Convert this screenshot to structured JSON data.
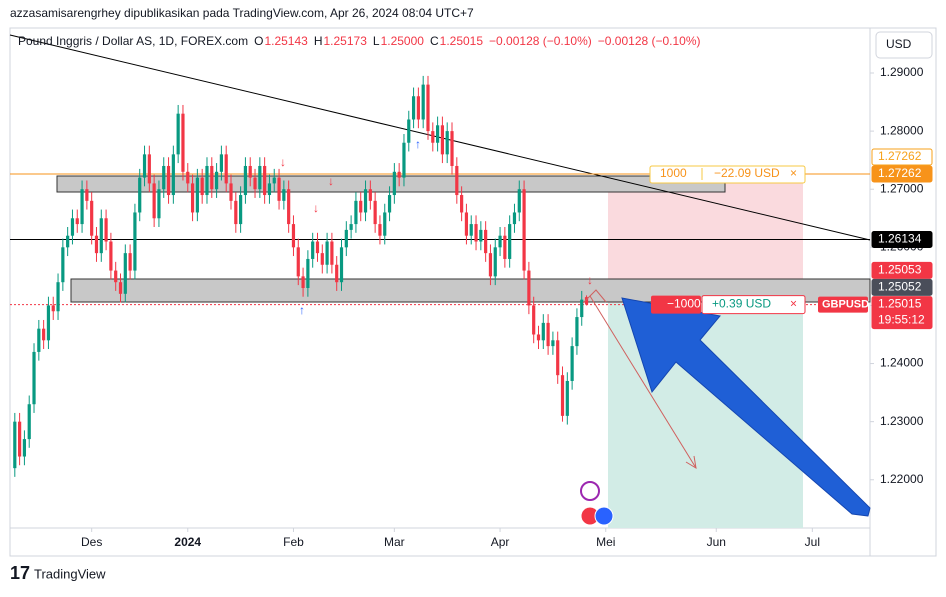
{
  "publisher": "azzasamisarengrhey dipublikasikan pada TradingView.com, Apr 26, 2024 08:04 UTC+7",
  "brand": "TradingView",
  "chart_data": {
    "type": "candlestick",
    "header": {
      "symbol": "Pound Inggris / Dollar AS, 1D, FOREX.com",
      "ohlc": [
        {
          "label": "O",
          "value": "1.25143"
        },
        {
          "label": "H",
          "value": "1.25173"
        },
        {
          "label": "L",
          "value": "1.25000"
        },
        {
          "label": "C",
          "value": "1.25015"
        }
      ],
      "change": "−0.00128 (−0.10%)",
      "change_repeat": "−0.00128 (−0.10%)"
    },
    "currency": "USD",
    "symbol_tag": "GBPUSD",
    "countdown": "19:55:12",
    "up_color": "#089981",
    "down_color": "#f23645",
    "open": [
      1.222,
      1.23,
      1.224,
      1.227,
      1.233,
      1.242,
      1.246,
      1.244,
      1.25,
      1.249,
      1.254,
      1.26,
      1.262,
      1.265,
      1.264,
      1.27,
      1.268,
      1.262,
      1.259,
      1.265,
      1.261,
      1.256,
      1.254,
      1.252,
      1.259,
      1.256,
      1.266,
      1.272,
      1.276,
      1.271,
      1.265,
      1.27,
      1.274,
      1.269,
      1.276,
      1.283,
      1.273,
      1.271,
      1.266,
      1.272,
      1.269,
      1.274,
      1.27,
      1.273,
      1.276,
      1.271,
      1.268,
      1.264,
      1.269,
      1.274,
      1.272,
      1.27,
      1.274,
      1.269,
      1.271,
      1.272,
      1.268,
      1.27,
      1.264,
      1.26,
      1.255,
      1.253,
      1.258,
      1.261,
      1.259,
      1.257,
      1.261,
      1.257,
      1.254,
      1.26,
      1.263,
      1.264,
      1.268,
      1.266,
      1.27,
      1.268,
      1.264,
      1.262,
      1.266,
      1.269,
      1.273,
      1.272,
      1.278,
      1.282,
      1.286,
      1.282,
      1.288,
      1.28,
      1.278,
      1.281,
      1.276,
      1.28,
      1.274,
      1.269,
      1.266,
      1.262,
      1.264,
      1.261,
      1.263,
      1.259,
      1.255,
      1.26,
      1.262,
      1.258,
      1.264,
      1.266,
      1.27,
      1.256,
      1.25,
      1.245,
      1.244,
      1.247,
      1.243,
      1.244,
      1.238,
      1.231,
      1.237,
      1.243,
      1.248,
      1.25143
    ],
    "high": [
      1.2315,
      1.2315,
      1.2285,
      1.2345,
      1.2435,
      1.2475,
      1.2475,
      1.2515,
      1.2515,
      1.2555,
      1.2615,
      1.2635,
      1.2665,
      1.2665,
      1.2715,
      1.2715,
      1.2695,
      1.2635,
      1.2665,
      1.2665,
      1.2625,
      1.2575,
      1.2555,
      1.2605,
      1.2605,
      1.2675,
      1.2735,
      1.2775,
      1.2775,
      1.2725,
      1.2715,
      1.2755,
      1.2755,
      1.2775,
      1.2845,
      1.2845,
      1.2745,
      1.2725,
      1.2735,
      1.2735,
      1.2755,
      1.2755,
      1.2745,
      1.2775,
      1.2775,
      1.2725,
      1.2695,
      1.2705,
      1.2755,
      1.2755,
      1.2735,
      1.2755,
      1.2755,
      1.2725,
      1.2735,
      1.2735,
      1.2715,
      1.2715,
      1.2655,
      1.2615,
      1.2565,
      1.2595,
      1.2625,
      1.2625,
      1.2605,
      1.2625,
      1.2625,
      1.2585,
      1.2615,
      1.2645,
      1.2655,
      1.2695,
      1.2695,
      1.2715,
      1.2715,
      1.2695,
      1.2655,
      1.2675,
      1.2705,
      1.2745,
      1.2745,
      1.2795,
      1.2835,
      1.2875,
      1.2875,
      1.2895,
      1.2895,
      1.2815,
      1.2825,
      1.2825,
      1.2815,
      1.2815,
      1.2755,
      1.2705,
      1.2675,
      1.2655,
      1.2655,
      1.2645,
      1.2645,
      1.2605,
      1.2615,
      1.2635,
      1.2635,
      1.2655,
      1.2675,
      1.2715,
      1.2715,
      1.2575,
      1.2515,
      1.2465,
      1.2485,
      1.2485,
      1.2455,
      1.2455,
      1.2395,
      1.2385,
      1.2445,
      1.2495,
      1.2525,
      1.25173
    ],
    "low": [
      1.2205,
      1.2225,
      1.2225,
      1.2255,
      1.2315,
      1.2405,
      1.2425,
      1.2425,
      1.2475,
      1.2475,
      1.2525,
      1.2585,
      1.2605,
      1.2625,
      1.2625,
      1.2665,
      1.2605,
      1.2575,
      1.2575,
      1.2595,
      1.2545,
      1.2525,
      1.2505,
      1.2505,
      1.2545,
      1.2545,
      1.2645,
      1.2705,
      1.2695,
      1.2635,
      1.2635,
      1.2685,
      1.2675,
      1.2675,
      1.2745,
      1.2715,
      1.2695,
      1.2645,
      1.2645,
      1.2675,
      1.2675,
      1.2685,
      1.2685,
      1.2715,
      1.2695,
      1.2665,
      1.2625,
      1.2625,
      1.2675,
      1.2705,
      1.2685,
      1.2685,
      1.2675,
      1.2675,
      1.2695,
      1.2665,
      1.2665,
      1.2625,
      1.2585,
      1.2535,
      1.2515,
      1.2515,
      1.2565,
      1.2575,
      1.2555,
      1.2555,
      1.2555,
      1.2525,
      1.2525,
      1.2585,
      1.2615,
      1.2625,
      1.2645,
      1.2645,
      1.2665,
      1.2625,
      1.2605,
      1.2605,
      1.2645,
      1.2675,
      1.2705,
      1.2705,
      1.2765,
      1.2805,
      1.2805,
      1.2805,
      1.2785,
      1.2765,
      1.2765,
      1.2745,
      1.2745,
      1.2725,
      1.2675,
      1.2645,
      1.2605,
      1.2605,
      1.2595,
      1.2595,
      1.2575,
      1.2535,
      1.2535,
      1.2585,
      1.2565,
      1.2565,
      1.2625,
      1.2645,
      1.2545,
      1.2485,
      1.2435,
      1.2425,
      1.2425,
      1.2415,
      1.2415,
      1.2365,
      1.23,
      1.2295,
      1.2355,
      1.2415,
      1.2465,
      1.25
    ],
    "close": [
      1.23,
      1.224,
      1.227,
      1.233,
      1.242,
      1.246,
      1.244,
      1.25,
      1.249,
      1.254,
      1.26,
      1.262,
      1.265,
      1.264,
      1.27,
      1.268,
      1.262,
      1.259,
      1.265,
      1.261,
      1.256,
      1.254,
      1.252,
      1.259,
      1.256,
      1.266,
      1.272,
      1.276,
      1.271,
      1.265,
      1.27,
      1.274,
      1.269,
      1.276,
      1.283,
      1.273,
      1.271,
      1.266,
      1.272,
      1.269,
      1.274,
      1.27,
      1.273,
      1.276,
      1.271,
      1.268,
      1.264,
      1.269,
      1.274,
      1.272,
      1.27,
      1.274,
      1.269,
      1.271,
      1.272,
      1.268,
      1.27,
      1.264,
      1.26,
      1.255,
      1.253,
      1.258,
      1.261,
      1.259,
      1.257,
      1.261,
      1.257,
      1.254,
      1.26,
      1.263,
      1.264,
      1.268,
      1.266,
      1.27,
      1.268,
      1.264,
      1.262,
      1.266,
      1.269,
      1.273,
      1.272,
      1.278,
      1.282,
      1.286,
      1.282,
      1.288,
      1.28,
      1.278,
      1.281,
      1.276,
      1.28,
      1.274,
      1.269,
      1.266,
      1.262,
      1.264,
      1.261,
      1.263,
      1.259,
      1.255,
      1.26,
      1.262,
      1.258,
      1.264,
      1.266,
      1.27,
      1.256,
      1.25,
      1.245,
      1.244,
      1.247,
      1.243,
      1.244,
      1.238,
      1.231,
      1.237,
      1.243,
      1.248,
      1.251,
      1.25015
    ],
    "xlim": [
      -1,
      178
    ],
    "xticks": [
      {
        "value": 16,
        "label": "Des"
      },
      {
        "value": 36,
        "label": "2024"
      },
      {
        "value": 58,
        "label": "Feb"
      },
      {
        "value": 79,
        "label": "Mar"
      },
      {
        "value": 101,
        "label": "Apr"
      },
      {
        "value": 123,
        "label": "Mei"
      },
      {
        "value": 146,
        "label": "Jun"
      },
      {
        "value": 166,
        "label": "Jul"
      }
    ],
    "ylim": [
      1.2117,
      1.2974
    ],
    "yticks": [
      {
        "value": 1.22,
        "label": "1.22000"
      },
      {
        "value": 1.23,
        "label": "1.23000"
      },
      {
        "value": 1.24,
        "label": "1.24000"
      },
      {
        "value": 1.25,
        "label": "1.25000"
      },
      {
        "value": 1.26,
        "label": "1.26000"
      },
      {
        "value": 1.27,
        "label": "1.27000"
      },
      {
        "value": 1.28,
        "label": "1.28000"
      },
      {
        "value": 1.29,
        "label": "1.29000"
      }
    ],
    "price_labels": [
      {
        "value": 1.27262,
        "bg": "#ffffff",
        "fg": "#f7a21b",
        "border": "#f7a21b"
      },
      {
        "value": 1.27262,
        "bg": "#f7931a",
        "fg": "#ffffff",
        "border": "#f7931a"
      },
      {
        "value": 1.26134,
        "bg": "#000000",
        "fg": "#ffffff",
        "border": "#000000"
      },
      {
        "value": 1.25053,
        "bg": "#f23645",
        "fg": "#ffffff",
        "border": "#f23645"
      },
      {
        "value": 1.25052,
        "bg": "#4a4e5a",
        "fg": "#ffffff",
        "border": "#4a4e5a"
      },
      {
        "value": 1.25015,
        "bg": "#f23645",
        "fg": "#ffffff",
        "border": "#f23645"
      }
    ],
    "position": {
      "stop_qty": "1000",
      "stop_pnl": "−22.09 USD",
      "entry_qty": "−1000",
      "entry_pnl": "+0.39 USD"
    }
  }
}
